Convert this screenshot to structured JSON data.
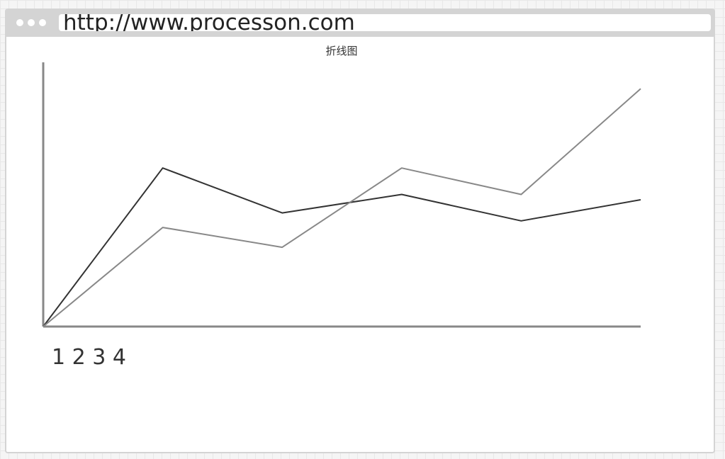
{
  "browser": {
    "url": "http://www.processon.com"
  },
  "chart_data": {
    "type": "line",
    "title": "折线图",
    "x": [
      0,
      1,
      2,
      3,
      4,
      5
    ],
    "x_tick_label": "1 2 3 4",
    "ylim": [
      0,
      100
    ],
    "grid": false,
    "series": [
      {
        "color": "#333333",
        "values": [
          0,
          60,
          43,
          50,
          40,
          48
        ]
      },
      {
        "color": "#888888",
        "values": [
          0,
          37.5,
          30,
          60,
          50,
          90
        ]
      }
    ]
  }
}
